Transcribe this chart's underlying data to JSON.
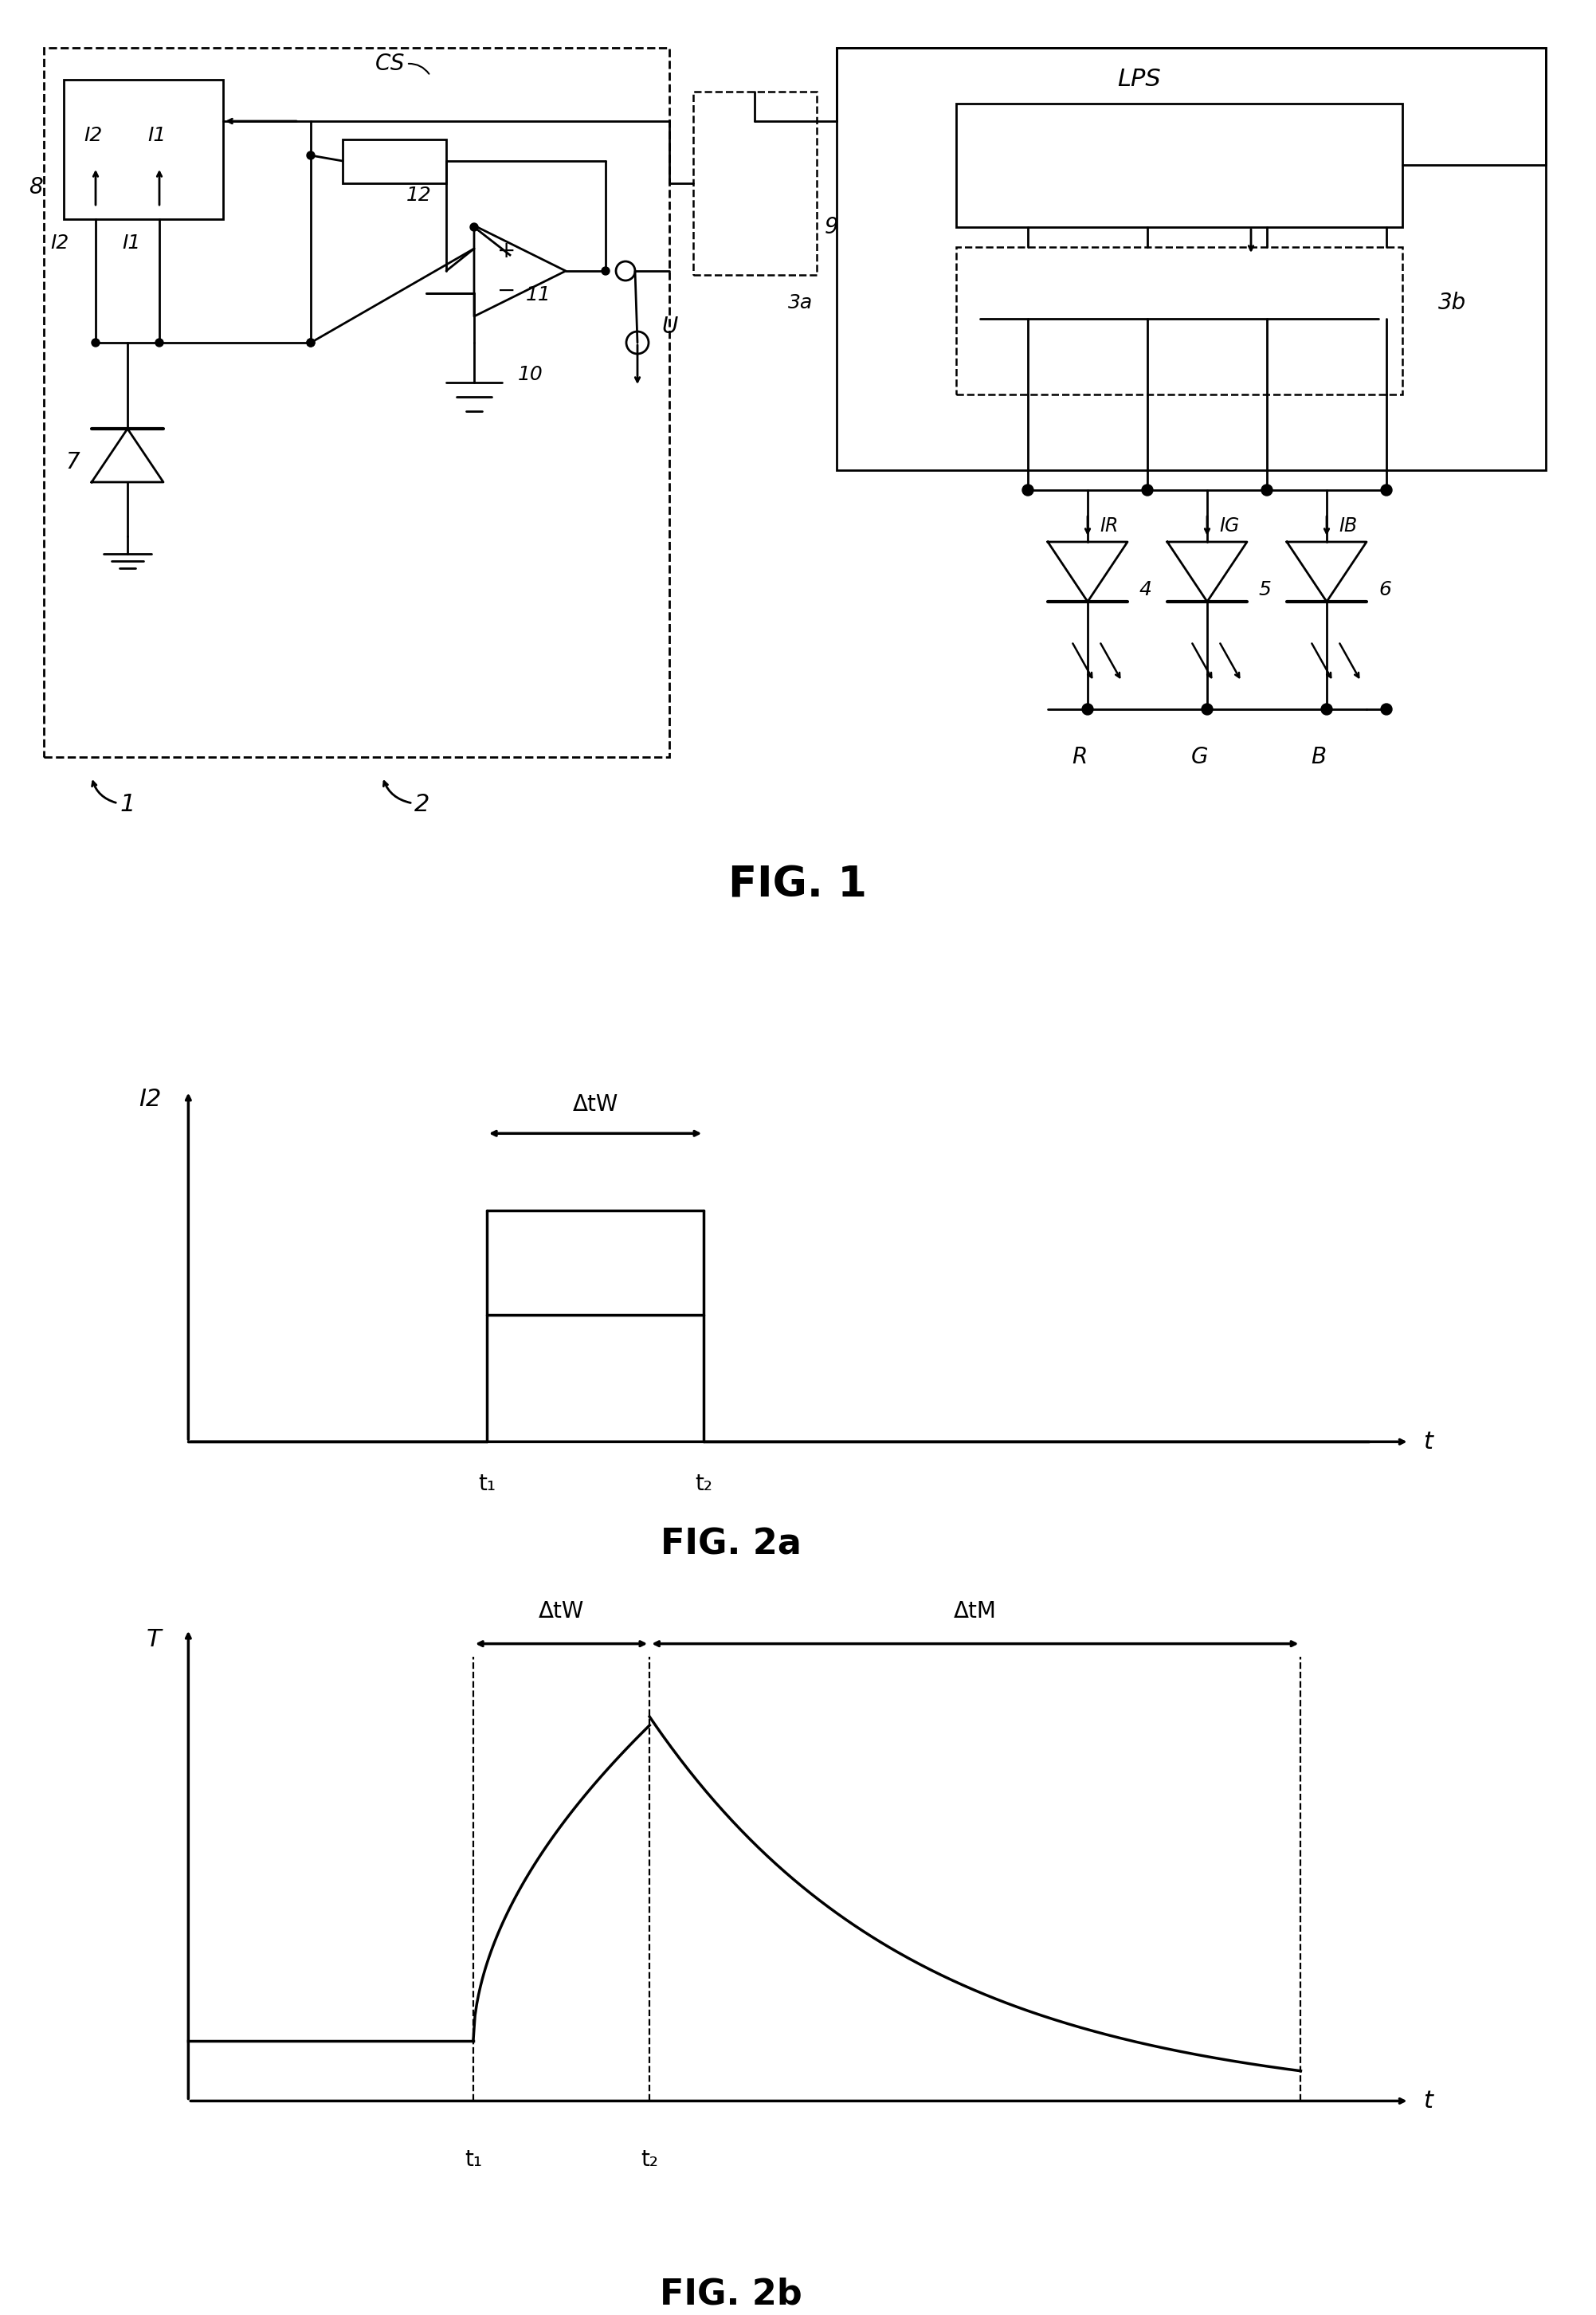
{
  "fig_width": 20.03,
  "fig_height": 29.05,
  "bg_color": "#ffffff",
  "lc": "#000000",
  "lw": 2.0,
  "fig1_title": "FIG. 1",
  "fig2a_title": "FIG. 2a",
  "fig2b_title": "FIG. 2b"
}
